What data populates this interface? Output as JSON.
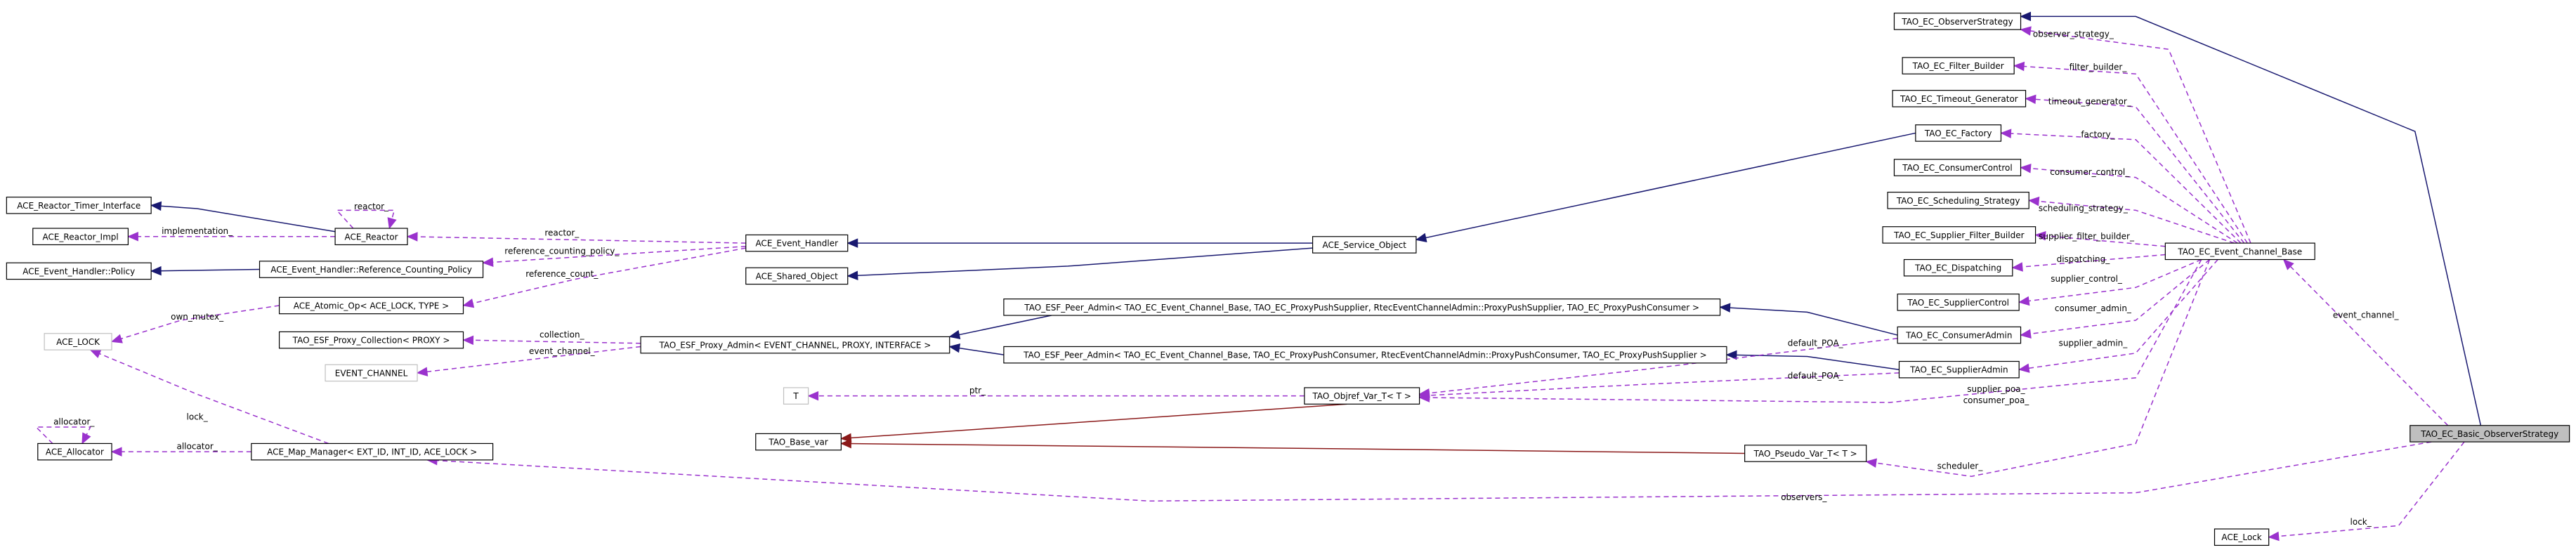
{
  "nodes": [
    {
      "label": "ACE_Reactor_Timer_Interface"
    },
    {
      "label": "ACE_Reactor_Impl"
    },
    {
      "label": "ACE_Event_Handler::Policy"
    },
    {
      "label": "ACE_Reactor"
    },
    {
      "label": "ACE_Event_Handler::Reference_Counting_Policy"
    },
    {
      "label": "ACE_Atomic_Op< ACE_LOCK, TYPE >"
    },
    {
      "label": "ACE_LOCK"
    },
    {
      "label": "TAO_ESF_Proxy_Collection< PROXY >"
    },
    {
      "label": "EVENT_CHANNEL"
    },
    {
      "label": "ACE_Event_Handler"
    },
    {
      "label": "ACE_Shared_Object"
    },
    {
      "label": "ACE_Service_Object"
    },
    {
      "label": "TAO_ESF_Proxy_Admin< EVENT_CHANNEL, PROXY, INTERFACE >"
    },
    {
      "label": "TAO_ESF_Peer_Admin< TAO_EC_Event_Channel_Base, TAO_EC_ProxyPushSupplier, RtecEventChannelAdmin::ProxyPushSupplier, TAO_EC_ProxyPushConsumer >"
    },
    {
      "label": "TAO_ESF_Peer_Admin< TAO_EC_Event_Channel_Base, TAO_EC_ProxyPushConsumer, RtecEventChannelAdmin::ProxyPushConsumer, TAO_EC_ProxyPushSupplier >"
    },
    {
      "label": "T"
    },
    {
      "label": "TAO_Objref_Var_T< T >"
    },
    {
      "label": "TAO_Base_var"
    },
    {
      "label": "ACE_Allocator"
    },
    {
      "label": "ACE_Map_Manager< EXT_ID, INT_ID, ACE_LOCK >"
    },
    {
      "label": "TAO_Pseudo_Var_T< T >"
    },
    {
      "label": "TAO_EC_ObserverStrategy"
    },
    {
      "label": "TAO_EC_Filter_Builder"
    },
    {
      "label": "TAO_EC_Timeout_Generator"
    },
    {
      "label": "TAO_EC_Factory"
    },
    {
      "label": "TAO_EC_ConsumerControl"
    },
    {
      "label": "TAO_EC_Scheduling_Strategy"
    },
    {
      "label": "TAO_EC_Supplier_Filter_Builder"
    },
    {
      "label": "TAO_EC_Dispatching"
    },
    {
      "label": "TAO_EC_SupplierControl"
    },
    {
      "label": "TAO_EC_ConsumerAdmin"
    },
    {
      "label": "TAO_EC_SupplierAdmin"
    },
    {
      "label": "TAO_EC_Event_Channel_Base"
    },
    {
      "label": "TAO_EC_Basic_ObserverStrategy"
    },
    {
      "label": "ACE_Lock"
    }
  ],
  "edges": [
    {
      "label": "implementation_"
    },
    {
      "label": "reactor_"
    },
    {
      "label": "reactor_"
    },
    {
      "label": "reference_counting_policy_"
    },
    {
      "label": "reference_count_"
    },
    {
      "label": "own_mutex_"
    },
    {
      "label": "collection_"
    },
    {
      "label": "event_channel_"
    },
    {
      "label": "ptr_"
    },
    {
      "label": "default_POA_"
    },
    {
      "label": "default_POA_"
    },
    {
      "label": "supplier_poa_"
    },
    {
      "label": "consumer_poa_"
    },
    {
      "label": "scheduler_"
    },
    {
      "label": "observer_strategy_"
    },
    {
      "label": "filter_builder_"
    },
    {
      "label": "timeout_generator_"
    },
    {
      "label": "factory_"
    },
    {
      "label": "consumer_control_"
    },
    {
      "label": "scheduling_strategy_"
    },
    {
      "label": "supplier_filter_builder_"
    },
    {
      "label": "dispatching_"
    },
    {
      "label": "supplier_control_"
    },
    {
      "label": "consumer_admin_"
    },
    {
      "label": "supplier_admin_"
    },
    {
      "label": "event_channel_"
    },
    {
      "label": "observers_"
    },
    {
      "label": "lock_"
    },
    {
      "label": "lock_"
    },
    {
      "label": "allocator_"
    },
    {
      "label": "allocator_"
    }
  ]
}
